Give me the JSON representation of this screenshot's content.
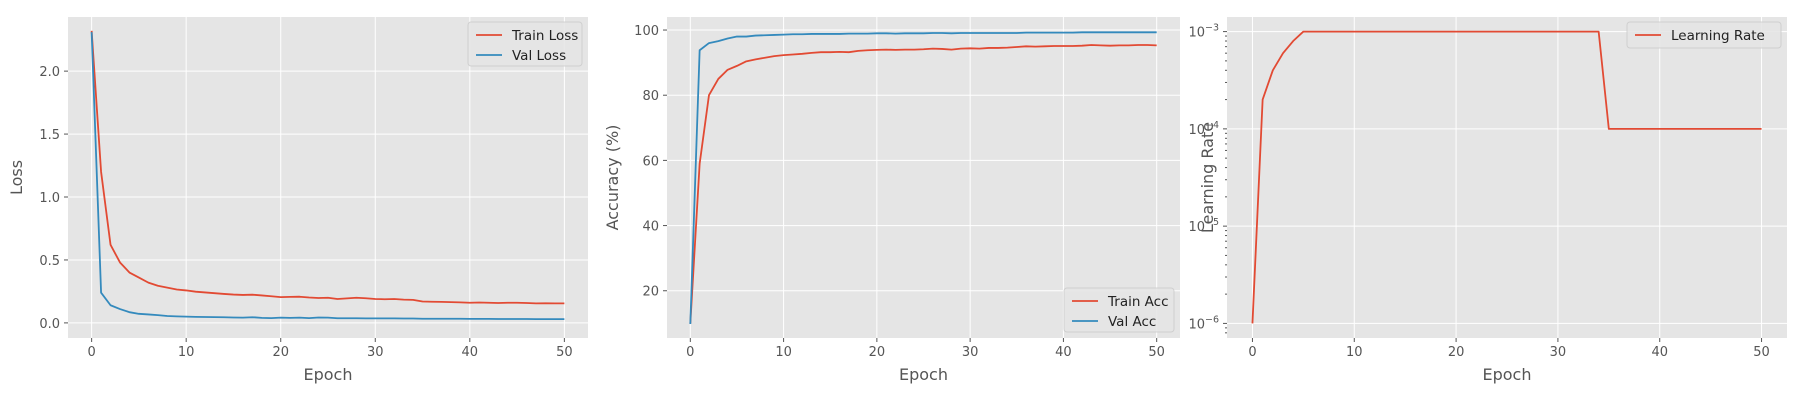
{
  "chart_data": [
    {
      "type": "line",
      "xlabel": "Epoch",
      "ylabel": "Loss",
      "xlim": [
        -2.5,
        52.5
      ],
      "ylim": [
        -0.12,
        2.43
      ],
      "xticks": [
        0,
        10,
        20,
        30,
        40,
        50
      ],
      "yticks": [
        0.0,
        0.5,
        1.0,
        1.5,
        2.0
      ],
      "ytick_labels": [
        "0.0",
        "0.5",
        "1.0",
        "1.5",
        "2.0"
      ],
      "grid": true,
      "legend_position": "top-right",
      "x": [
        0,
        1,
        2,
        3,
        4,
        5,
        6,
        7,
        8,
        9,
        10,
        11,
        12,
        13,
        14,
        15,
        16,
        17,
        18,
        19,
        20,
        21,
        22,
        23,
        24,
        25,
        26,
        27,
        28,
        29,
        30,
        31,
        32,
        33,
        34,
        35,
        36,
        37,
        38,
        39,
        40,
        41,
        42,
        43,
        44,
        45,
        46,
        47,
        48,
        49,
        50
      ],
      "series": [
        {
          "name": "Train Loss",
          "color": "#E24A33",
          "values": [
            2.32,
            1.2,
            0.62,
            0.48,
            0.4,
            0.36,
            0.32,
            0.295,
            0.28,
            0.265,
            0.258,
            0.248,
            0.242,
            0.236,
            0.23,
            0.225,
            0.222,
            0.224,
            0.218,
            0.212,
            0.205,
            0.207,
            0.208,
            0.202,
            0.198,
            0.2,
            0.19,
            0.195,
            0.2,
            0.196,
            0.19,
            0.188,
            0.19,
            0.185,
            0.183,
            0.17,
            0.168,
            0.167,
            0.165,
            0.163,
            0.16,
            0.162,
            0.16,
            0.158,
            0.16,
            0.16,
            0.158,
            0.155,
            0.156,
            0.155,
            0.155
          ]
        },
        {
          "name": "Val Loss",
          "color": "#348ABD",
          "values": [
            2.31,
            0.24,
            0.14,
            0.11,
            0.085,
            0.072,
            0.067,
            0.062,
            0.055,
            0.052,
            0.05,
            0.048,
            0.047,
            0.046,
            0.045,
            0.043,
            0.042,
            0.045,
            0.04,
            0.038,
            0.042,
            0.04,
            0.042,
            0.038,
            0.043,
            0.042,
            0.037,
            0.037,
            0.037,
            0.036,
            0.036,
            0.036,
            0.036,
            0.035,
            0.035,
            0.033,
            0.033,
            0.033,
            0.033,
            0.033,
            0.032,
            0.032,
            0.032,
            0.031,
            0.031,
            0.031,
            0.031,
            0.03,
            0.03,
            0.03,
            0.03
          ]
        }
      ]
    },
    {
      "type": "line",
      "xlabel": "Epoch",
      "ylabel": "Accuracy (%)",
      "xlim": [
        -2.5,
        52.5
      ],
      "ylim": [
        5.5,
        104
      ],
      "xticks": [
        0,
        10,
        20,
        30,
        40,
        50
      ],
      "yticks": [
        20,
        40,
        60,
        80,
        100
      ],
      "ytick_labels": [
        "20",
        "40",
        "60",
        "80",
        "100"
      ],
      "grid": true,
      "legend_position": "bottom-right",
      "x": [
        0,
        1,
        2,
        3,
        4,
        5,
        6,
        7,
        8,
        9,
        10,
        11,
        12,
        13,
        14,
        15,
        16,
        17,
        18,
        19,
        20,
        21,
        22,
        23,
        24,
        25,
        26,
        27,
        28,
        29,
        30,
        31,
        32,
        33,
        34,
        35,
        36,
        37,
        38,
        39,
        40,
        41,
        42,
        43,
        44,
        45,
        46,
        47,
        48,
        49,
        50
      ],
      "series": [
        {
          "name": "Train Acc",
          "color": "#E24A33",
          "values": [
            10,
            59,
            80,
            85,
            87.8,
            89,
            90.4,
            91,
            91.5,
            92,
            92.3,
            92.5,
            92.7,
            93,
            93.2,
            93.2,
            93.3,
            93.2,
            93.6,
            93.8,
            93.9,
            94,
            93.9,
            94,
            94,
            94.1,
            94.3,
            94.2,
            94,
            94.3,
            94.4,
            94.3,
            94.5,
            94.5,
            94.6,
            94.8,
            95,
            94.9,
            95,
            95.1,
            95.1,
            95.1,
            95.2,
            95.4,
            95.3,
            95.2,
            95.3,
            95.3,
            95.4,
            95.4,
            95.3
          ]
        },
        {
          "name": "Val Acc",
          "color": "#348ABD",
          "values": [
            9.8,
            93.8,
            96,
            96.6,
            97.4,
            98,
            98,
            98.3,
            98.4,
            98.5,
            98.6,
            98.7,
            98.7,
            98.8,
            98.8,
            98.8,
            98.8,
            98.9,
            98.9,
            98.9,
            99,
            99,
            98.9,
            99,
            99,
            99,
            99.1,
            99.1,
            99,
            99.1,
            99.1,
            99.1,
            99.1,
            99.1,
            99.1,
            99.1,
            99.2,
            99.2,
            99.2,
            99.2,
            99.2,
            99.2,
            99.3,
            99.3,
            99.3,
            99.3,
            99.3,
            99.3,
            99.3,
            99.3,
            99.3
          ]
        }
      ]
    },
    {
      "type": "line",
      "xlabel": "Epoch",
      "ylabel": "Learning Rate",
      "scale_y": "log",
      "xlim": [
        -2.5,
        52.5
      ],
      "ylim_log10": [
        -6.15,
        -2.85
      ],
      "xticks": [
        0,
        10,
        20,
        30,
        40,
        50
      ],
      "yticks_log10": [
        -6,
        -5,
        -4,
        -3
      ],
      "ytick_labels": [
        {
          "base": "10",
          "exp": "−6"
        },
        {
          "base": "10",
          "exp": "−5"
        },
        {
          "base": "10",
          "exp": "−4"
        },
        {
          "base": "10",
          "exp": "−3"
        }
      ],
      "grid": true,
      "legend_position": "top-right",
      "x": [
        0,
        1,
        2,
        3,
        4,
        5,
        6,
        7,
        8,
        9,
        10,
        11,
        12,
        13,
        14,
        15,
        16,
        17,
        18,
        19,
        20,
        21,
        22,
        23,
        24,
        25,
        26,
        27,
        28,
        29,
        30,
        31,
        32,
        33,
        34,
        35,
        36,
        37,
        38,
        39,
        40,
        41,
        42,
        43,
        44,
        45,
        46,
        47,
        48,
        49,
        50
      ],
      "series": [
        {
          "name": "Learning Rate",
          "color": "#E24A33",
          "values": [
            1e-06,
            0.0002,
            0.0004,
            0.0006,
            0.0008,
            0.001,
            0.001,
            0.001,
            0.001,
            0.001,
            0.001,
            0.001,
            0.001,
            0.001,
            0.001,
            0.001,
            0.001,
            0.001,
            0.001,
            0.001,
            0.001,
            0.001,
            0.001,
            0.001,
            0.001,
            0.001,
            0.001,
            0.001,
            0.001,
            0.001,
            0.001,
            0.001,
            0.001,
            0.001,
            0.001,
            0.0001,
            0.0001,
            0.0001,
            0.0001,
            0.0001,
            0.0001,
            0.0001,
            0.0001,
            0.0001,
            0.0001,
            0.0001,
            0.0001,
            0.0001,
            0.0001,
            0.0001,
            0.0001
          ]
        }
      ]
    }
  ]
}
